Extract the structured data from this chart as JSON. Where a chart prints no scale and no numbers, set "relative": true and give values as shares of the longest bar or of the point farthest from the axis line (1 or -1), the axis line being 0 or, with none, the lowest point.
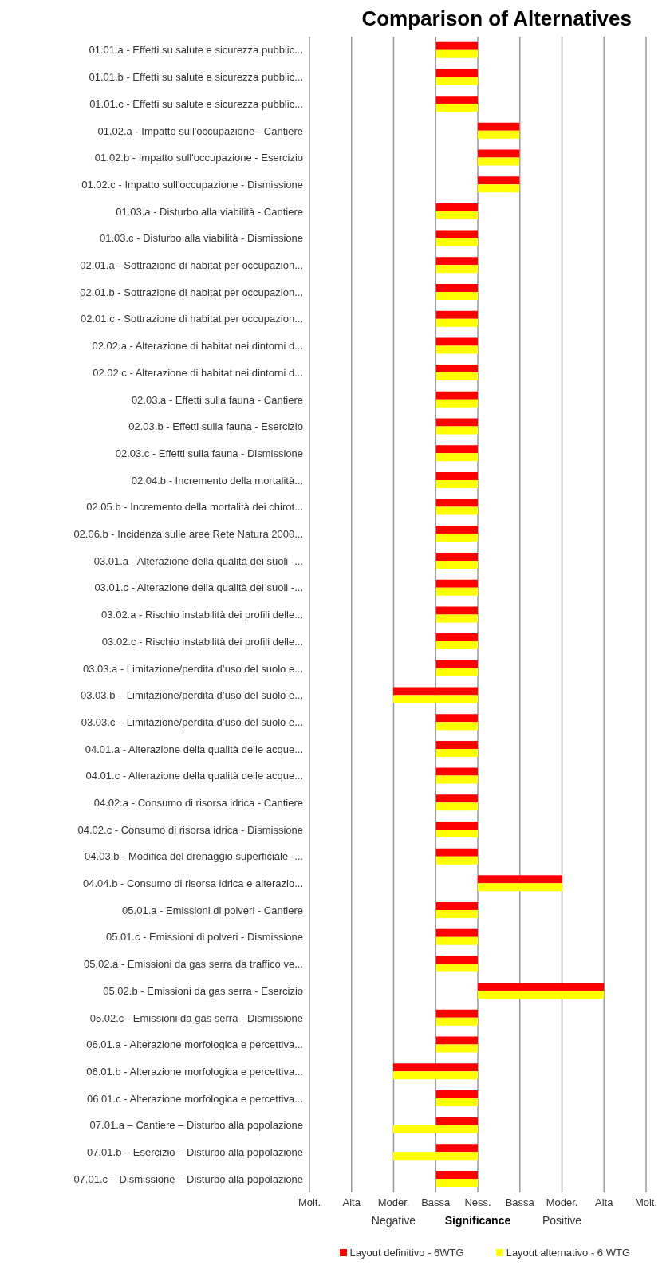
{
  "chart_data": {
    "type": "bar",
    "orientation": "horizontal",
    "title": "Comparison of Alternatives",
    "xlabel": "Significance",
    "annotations": [
      "Molt.",
      "Alta",
      "Moder.",
      "Bassa",
      "Ness.",
      "Bassa",
      "Moder.",
      "Alta",
      "Molt.",
      "Negative",
      "Positive"
    ],
    "relative": true,
    "categories": [
      "01.01.a - Effetti su salute e sicurezza pubblic...",
      "01.01.b - Effetti su salute e sicurezza pubblic...",
      "01.01.c - Effetti su salute e sicurezza pubblic...",
      "01.02.a - Impatto sull'occupazione - Cantiere",
      "01.02.b - Impatto sull'occupazione - Esercizio",
      "01.02.c - Impatto sull'occupazione - Dismissione",
      "01.03.a - Disturbo alla viabilità - Cantiere",
      "01.03.c - Disturbo alla viabilità - Dismissione",
      "02.01.a - Sottrazione di habitat per occupazion...",
      "02.01.b - Sottrazione di habitat per occupazion...",
      "02.01.c - Sottrazione di habitat per occupazion...",
      "02.02.a - Alterazione di habitat nei dintorni d...",
      "02.02.c - Alterazione di habitat nei dintorni d...",
      "02.03.a - Effetti sulla fauna - Cantiere",
      "02.03.b - Effetti sulla fauna - Esercizio",
      "02.03.c - Effetti sulla fauna - Dismissione",
      "02.04.b - Incremento della mortalità...",
      "02.05.b - Incremento della mortalità dei chirot...",
      "02.06.b - Incidenza sulle aree Rete Natura 2000...",
      "03.01.a - Alterazione della qualità dei suoli -...",
      "03.01.c - Alterazione della qualità dei suoli -...",
      "03.02.a - Rischio instabilità dei profili delle...",
      "03.02.c - Rischio instabilità dei profili delle...",
      "03.03.a - Limitazione/perdita d’uso del suolo e...",
      "03.03.b – Limitazione/perdita d’uso del suolo e...",
      "03.03.c – Limitazione/perdita d’uso del suolo e...",
      "04.01.a - Alterazione della qualità delle acque...",
      "04.01.c - Alterazione della qualità delle acque...",
      "04.02.a - Consumo di risorsa idrica - Cantiere",
      "04.02.c - Consumo di risorsa idrica - Dismissione",
      "04.03.b - Modifica del drenaggio superficiale -...",
      "04.04.b - Consumo di risorsa idrica e alterazio...",
      "05.01.a - Emissioni di polveri - Cantiere",
      "05.01.c - Emissioni di polveri - Dismissione",
      "05.02.a - Emissioni da gas serra da traffico ve...",
      "05.02.b - Emissioni da gas serra - Esercizio",
      "05.02.c - Emissioni da gas serra - Dismissione",
      "06.01.a - Alterazione morfologica e percettiva...",
      "06.01.b - Alterazione morfologica e percettiva...",
      "06.01.c - Alterazione morfologica e percettiva...",
      "07.01.a – Cantiere – Disturbo alla popolazione",
      "07.01.b – Esercizio – Disturbo alla popolazione",
      "07.01.c – Dismissione – Disturbo alla popolazione"
    ],
    "series": [
      {
        "name": "Layout definitivo - 6WTG",
        "color": "#ff0000",
        "values": [
          -0.33,
          -0.33,
          -0.33,
          0.33,
          0.33,
          0.33,
          -0.33,
          -0.33,
          -0.33,
          -0.33,
          -0.33,
          -0.33,
          -0.33,
          -0.33,
          -0.33,
          -0.33,
          -0.33,
          -0.33,
          -0.33,
          -0.33,
          -0.33,
          -0.33,
          -0.33,
          -0.33,
          -0.67,
          -0.33,
          -0.33,
          -0.33,
          -0.33,
          -0.33,
          -0.33,
          0.67,
          -0.33,
          -0.33,
          -0.33,
          1,
          -0.33,
          -0.33,
          -0.67,
          -0.33,
          -0.33,
          -0.33,
          -0.33
        ]
      },
      {
        "name": "Layout alternativo - 6 WTG",
        "color": "#ffff00",
        "values": [
          -0.33,
          -0.33,
          -0.33,
          0.33,
          0.33,
          0.33,
          -0.33,
          -0.33,
          -0.33,
          -0.33,
          -0.33,
          -0.33,
          -0.33,
          -0.33,
          -0.33,
          -0.33,
          -0.33,
          -0.33,
          -0.33,
          -0.33,
          -0.33,
          -0.33,
          -0.33,
          -0.33,
          -0.67,
          -0.33,
          -0.33,
          -0.33,
          -0.33,
          -0.33,
          -0.33,
          0.67,
          -0.33,
          -0.33,
          -0.33,
          1,
          -0.33,
          -0.33,
          -0.67,
          -0.33,
          -0.67,
          -0.67,
          -0.33
        ]
      }
    ],
    "grid": "x",
    "legend": "bottom"
  }
}
